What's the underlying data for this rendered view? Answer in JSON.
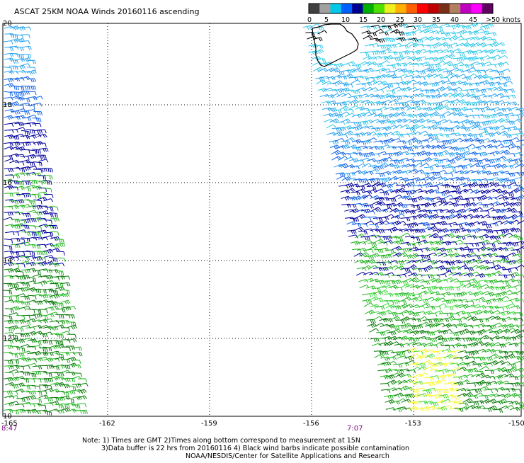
{
  "title": "ASCAT 25KM NOAA Winds 20160116 ascending",
  "colorbar": {
    "labels": [
      "0",
      "5",
      "10",
      "15",
      "20",
      "25",
      "30",
      "35",
      "40",
      "45",
      ">50 knots"
    ],
    "colors": [
      "#404040",
      "#a0a0a0",
      "#00c8e8",
      "#0060ff",
      "#000090",
      "#00b000",
      "#50e000",
      "#f0f020",
      "#ffb000",
      "#ff6000",
      "#ff0000",
      "#c00000",
      "#7a3018",
      "#b08060",
      "#c000c0",
      "#ff00ff",
      "#600060"
    ]
  },
  "map": {
    "lat_labels": [
      "20",
      "18",
      "16",
      "14",
      "12",
      "10"
    ],
    "lon_labels": [
      "-165",
      "-162",
      "-159",
      "-156",
      "-153",
      "-150"
    ],
    "pass_times": [
      "8:47",
      "7:07"
    ]
  },
  "notes": [
    "Note: 1) Times are GMT 2)Times along bottom correspond to measurement at 15N",
    "3)Data buffer is 22 hrs from 20160116 4) Black wind barbs indicate possible contamination",
    "NOAA/NESDIS/Center for Satellite Applications and Research"
  ],
  "wind_colors": {
    "cyan": "#30c8e8",
    "light_blue": "#2aa4f0",
    "blue": "#1464e6",
    "dark_blue": "#00009c",
    "dark_green": "#067806",
    "green": "#22b422",
    "bright_green": "#3cdc3c",
    "yellow": "#f8f830",
    "contaminated": "#000000"
  }
}
